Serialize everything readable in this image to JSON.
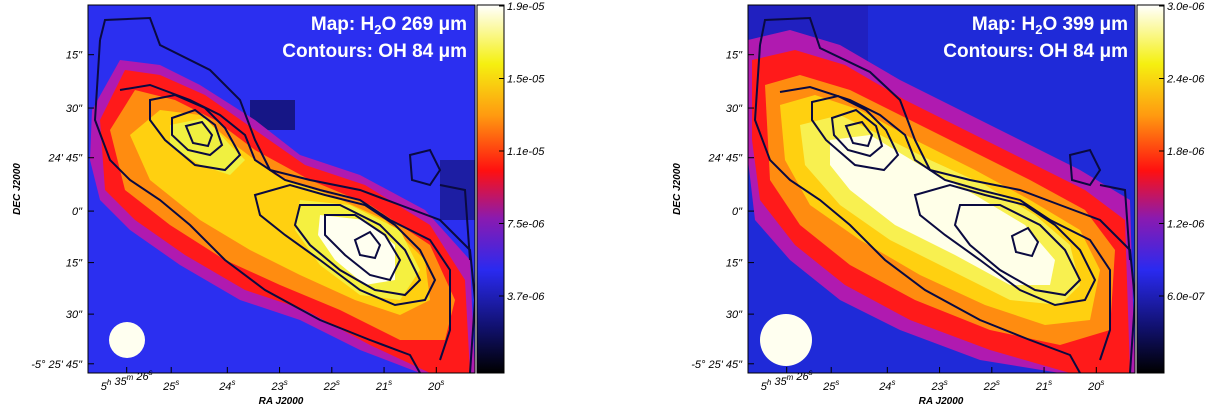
{
  "chart_data": [
    {
      "type": "heatmap",
      "title_line1": "Map: H",
      "title_sub": "2",
      "title_line1_rest": "O 269 μm",
      "title_line2": "Contours: OH 84 μm",
      "xlabel": "RA J2000",
      "ylabel": "DEC J2000",
      "x_ticks": [
        "5h 35m 26s",
        "25s",
        "24s",
        "23s",
        "22s",
        "21s",
        "20s"
      ],
      "y_ticks": [
        "15\"",
        "30\"",
        "24' 45\"",
        "0\"",
        "15\"",
        "30\"",
        "-5° 25' 45\""
      ],
      "colorbar_ticks": [
        "1.9e-05",
        "1.5e-05",
        "1.1e-05",
        "7.5e-06",
        "3.7e-06"
      ],
      "colorbar_range": [
        0,
        1.9e-05
      ],
      "colormap": "black-blue-red-yellow-white",
      "beam": "white circle, lower-left"
    },
    {
      "type": "heatmap",
      "title_line1": "Map: H",
      "title_sub": "2",
      "title_line1_rest": "O 399 μm",
      "title_line2": "Contours: OH 84 μm",
      "xlabel": "RA J2000",
      "ylabel": "DEC J2000",
      "x_ticks": [
        "5h 35m 26s",
        "25s",
        "24s",
        "23s",
        "22s",
        "21s",
        "20s"
      ],
      "y_ticks": [
        "15\"",
        "30\"",
        "24' 45\"",
        "0\"",
        "15\"",
        "30\"",
        "-5° 25' 45\""
      ],
      "colorbar_ticks": [
        "3.0e-06",
        "2.4e-06",
        "1.8e-06",
        "1.2e-06",
        "6.0e-07"
      ],
      "colorbar_range": [
        0,
        3e-06
      ],
      "colormap": "black-blue-red-yellow-white",
      "beam": "white circle, lower-left"
    }
  ]
}
